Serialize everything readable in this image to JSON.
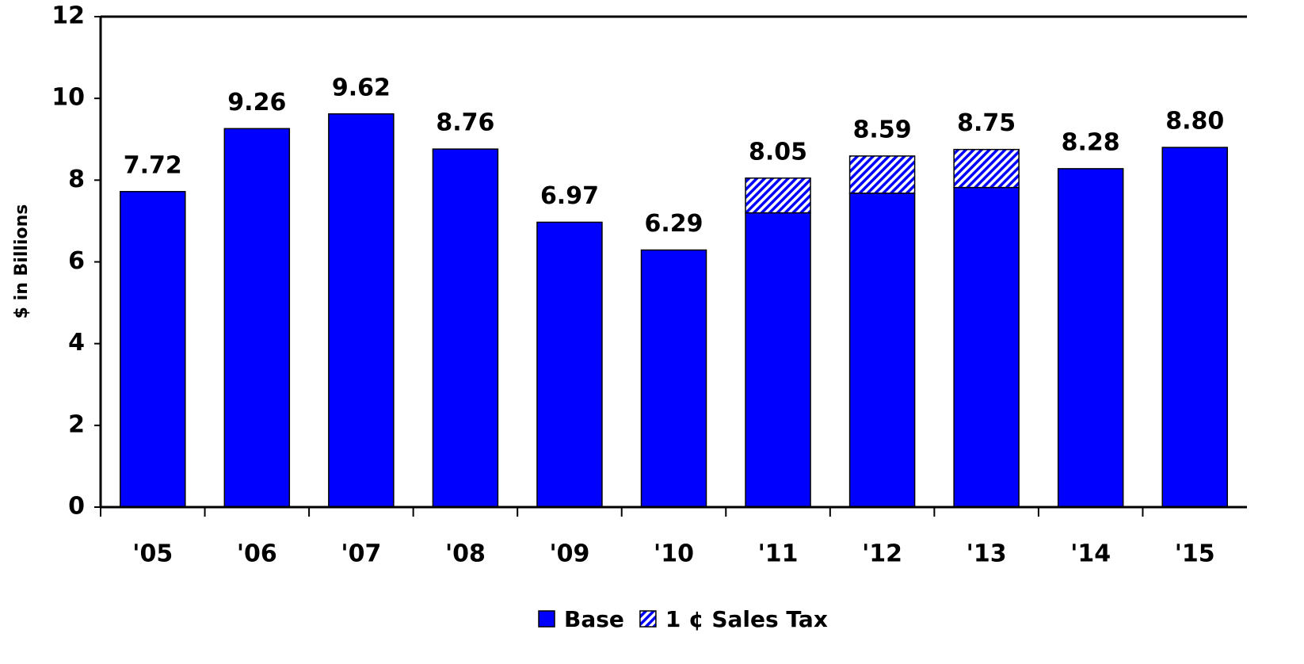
{
  "chart_data": {
    "type": "stacked_bar",
    "y_label": "$ in Billions",
    "categories": [
      "'05",
      "'06",
      "'07",
      "'08",
      "'09",
      "'10",
      "'11",
      "'12",
      "'13",
      "'14",
      "'15"
    ],
    "series": [
      {
        "name": "Base",
        "color": "#0000ff",
        "values": [
          7.72,
          9.26,
          9.62,
          8.76,
          6.97,
          6.29,
          7.2,
          7.68,
          7.82,
          8.28,
          8.8
        ]
      },
      {
        "name": "1 ¢ Sales Tax",
        "color": "#0000ff",
        "pattern": "hatch",
        "values": [
          null,
          null,
          null,
          null,
          null,
          null,
          0.85,
          0.91,
          0.93,
          null,
          null
        ]
      }
    ],
    "totals": [
      7.72,
      9.26,
      9.62,
      8.76,
      6.97,
      6.29,
      8.05,
      8.59,
      8.75,
      8.28,
      {
        "value": 8.8,
        "label": "8.80"
      }
    ],
    "ylim": [
      0,
      12
    ],
    "yticks": [
      0,
      2,
      4,
      6,
      8,
      10,
      12
    ],
    "grid": false
  }
}
